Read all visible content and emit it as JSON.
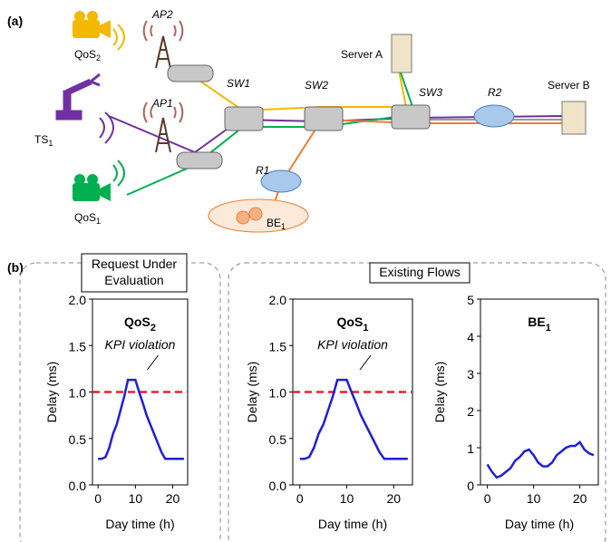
{
  "panel_a": {
    "label": "(a)",
    "nodes": {
      "qos2": {
        "text": "QoS",
        "sub": "2"
      },
      "ap2": "AP2",
      "ts1": {
        "text": "TS",
        "sub": "1"
      },
      "ap1": "AP1",
      "qos1": {
        "text": "QoS",
        "sub": "1"
      },
      "sw1": "SW1",
      "sw2": "SW2",
      "sw3": "SW3",
      "server_a": "Server A",
      "r2": "R2",
      "server_b": "Server B",
      "r1": "R1",
      "be1": {
        "text": "BE",
        "sub": "1"
      }
    }
  },
  "panel_b": {
    "label": "(b)",
    "request_box": [
      "Request Under",
      "Evaluation"
    ],
    "existing_box": "Existing Flows"
  },
  "chart_data": [
    {
      "type": "line",
      "title": "QoS",
      "title_sub": "2",
      "x_label": "Day time (h)",
      "y_label": "Delay (ms)",
      "x": [
        0,
        1,
        2,
        3,
        4,
        5,
        6,
        7,
        8,
        9,
        10,
        11,
        12,
        13,
        14,
        15,
        16,
        17,
        18,
        19,
        20,
        21,
        22,
        23
      ],
      "values": [
        0.28,
        0.28,
        0.3,
        0.4,
        0.55,
        0.65,
        0.8,
        0.95,
        1.13,
        1.13,
        1.13,
        1.0,
        0.88,
        0.75,
        0.65,
        0.55,
        0.45,
        0.35,
        0.28,
        0.28,
        0.28,
        0.28,
        0.28,
        0.28
      ],
      "color": "#1f1fd8",
      "xlim": [
        -1.5,
        24
      ],
      "xticks": [
        0,
        10,
        20
      ],
      "ylim": [
        0,
        2
      ],
      "yticks": [
        {
          "value": 0,
          "label": "0.0"
        },
        {
          "value": 0.5,
          "label": "0.5"
        },
        {
          "value": 1,
          "label": "1.0"
        },
        {
          "value": 1.5,
          "label": "1.5"
        },
        {
          "value": 2,
          "label": "2.0"
        }
      ],
      "threshold": 1,
      "threshold_color": "#e8202a",
      "annotation": "KPI violation"
    },
    {
      "type": "line",
      "title": "QoS",
      "title_sub": "1",
      "x_label": "Day time (h)",
      "y_label": "Delay (ms)",
      "x": [
        0,
        1,
        2,
        3,
        4,
        5,
        6,
        7,
        8,
        9,
        10,
        11,
        12,
        13,
        14,
        15,
        16,
        17,
        18,
        19,
        20,
        21,
        22,
        23
      ],
      "values": [
        0.28,
        0.28,
        0.3,
        0.4,
        0.55,
        0.65,
        0.8,
        0.95,
        1.13,
        1.13,
        1.13,
        1.0,
        0.88,
        0.75,
        0.65,
        0.55,
        0.45,
        0.35,
        0.28,
        0.28,
        0.28,
        0.28,
        0.28,
        0.28
      ],
      "color": "#1f1fd8",
      "xlim": [
        -1.5,
        24
      ],
      "xticks": [
        0,
        10,
        20
      ],
      "ylim": [
        0,
        2
      ],
      "yticks": [
        {
          "value": 0,
          "label": "0.0"
        },
        {
          "value": 0.5,
          "label": "0.5"
        },
        {
          "value": 1,
          "label": "1.0"
        },
        {
          "value": 1.5,
          "label": "1.5"
        },
        {
          "value": 2,
          "label": "2.0"
        }
      ],
      "threshold": 1,
      "threshold_color": "#e8202a",
      "annotation": "KPI violation"
    },
    {
      "type": "line",
      "title": "BE",
      "title_sub": "1",
      "x_label": "Day time (h)",
      "y_label": "Delay (ms)",
      "x": [
        0,
        1,
        2,
        3,
        4,
        5,
        6,
        7,
        8,
        9,
        10,
        11,
        12,
        13,
        14,
        15,
        16,
        17,
        18,
        19,
        20,
        21,
        22,
        23
      ],
      "values": [
        0.55,
        0.35,
        0.2,
        0.25,
        0.35,
        0.45,
        0.65,
        0.75,
        0.9,
        0.95,
        0.8,
        0.6,
        0.5,
        0.5,
        0.6,
        0.8,
        0.9,
        1.0,
        1.05,
        1.05,
        1.15,
        0.95,
        0.85,
        0.8
      ],
      "color": "#1f1fd8",
      "xlim": [
        -1.5,
        24
      ],
      "xticks": [
        0,
        10,
        20
      ],
      "ylim": [
        0,
        5
      ],
      "yticks": [
        0,
        1,
        2,
        3,
        4,
        5
      ]
    }
  ]
}
